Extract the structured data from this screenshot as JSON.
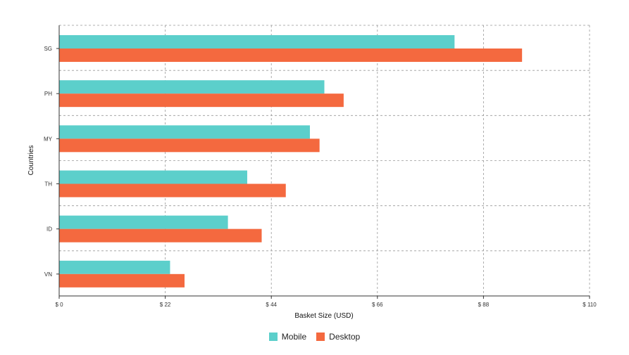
{
  "chart_data": {
    "type": "bar",
    "orientation": "horizontal",
    "categories": [
      "SG",
      "PH",
      "MY",
      "TH",
      "ID",
      "VN"
    ],
    "series": [
      {
        "name": "Mobile",
        "color": "#5ccfcb",
        "values": [
          82,
          55,
          52,
          39,
          35,
          23
        ]
      },
      {
        "name": "Desktop",
        "color": "#f4693f",
        "values": [
          96,
          59,
          54,
          47,
          42,
          26
        ]
      }
    ],
    "xlabel": "Basket Size (USD)",
    "ylabel": "Countries",
    "xlim": [
      0,
      110
    ],
    "xticks": [
      "$ 0",
      "$ 22",
      "$ 44",
      "$ 66",
      "$ 88",
      "$ 110"
    ],
    "grid": true,
    "legend_position": "bottom-center"
  }
}
